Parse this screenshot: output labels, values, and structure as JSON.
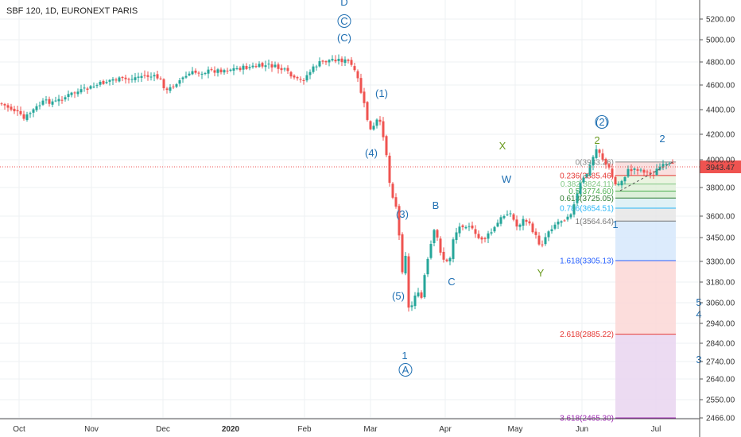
{
  "chart_data": {
    "type": "candlestick",
    "title": "SBF 120, 1D, EURONEXT PARIS",
    "last_price": "3943.47",
    "x_ticks": [
      "Oct",
      "Nov",
      "Dec",
      "2020",
      "Feb",
      "Mar",
      "Apr",
      "May",
      "Jun",
      "Jul"
    ],
    "y_ticks": [
      "5200.00",
      "5000.00",
      "4800.00",
      "4600.00",
      "4400.00",
      "4200.00",
      "4000.00",
      "3800.00",
      "3600.00",
      "3450.00",
      "3300.00",
      "3180.00",
      "3060.00",
      "2940.00",
      "2840.00",
      "2740.00",
      "2640.00",
      "2550.00",
      "2466.00"
    ],
    "y_scale": "log",
    "grid": true,
    "wave_labels": [
      "D",
      "C",
      "(C)",
      "(2)",
      "(1)",
      "(4)",
      "(3)",
      "(5)",
      "1",
      "A",
      "B",
      "C",
      "W",
      "X",
      "Y",
      "2",
      "2",
      "1",
      "5",
      "4",
      "3"
    ],
    "fibonacci_levels": [
      {
        "label": "0(3983.26)",
        "ratio": 0,
        "price": 3983.26,
        "color": "#888888"
      },
      {
        "label": "0.236(3885.46)",
        "ratio": 0.236,
        "price": 3885.46,
        "color": "#e53935"
      },
      {
        "label": "0.382(3824.11)",
        "ratio": 0.382,
        "price": 3824.11,
        "color": "#81c784"
      },
      {
        "label": "0.5(3774.60)",
        "ratio": 0.5,
        "price": 3774.6,
        "color": "#4caf50"
      },
      {
        "label": "0.618(3725.05)",
        "ratio": 0.618,
        "price": 3725.05,
        "color": "#2e7d32"
      },
      {
        "label": "0.786(3654.51)",
        "ratio": 0.786,
        "price": 3654.51,
        "color": "#29b6f6"
      },
      {
        "label": "1(3564.64)",
        "ratio": 1,
        "price": 3564.64,
        "color": "#777777"
      },
      {
        "label": "1.618(3305.13)",
        "ratio": 1.618,
        "price": 3305.13,
        "color": "#2962ff"
      },
      {
        "label": "2.618(2885.22)",
        "ratio": 2.618,
        "price": 2885.22,
        "color": "#e53935"
      },
      {
        "label": "3.618(2465.30)",
        "ratio": 3.618,
        "price": 2465.3,
        "color": "#9c27b0"
      }
    ]
  }
}
